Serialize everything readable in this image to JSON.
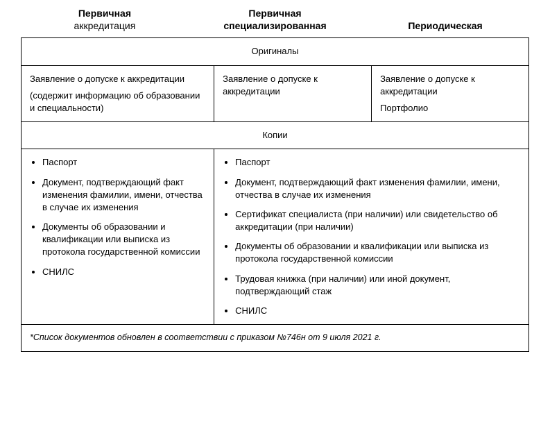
{
  "headers": {
    "col1": {
      "line1": "Первичная",
      "line2": "аккредитация"
    },
    "col2": {
      "line1": "Первичная",
      "line2": "специализированная"
    },
    "col3": {
      "line1": "Периодическая"
    }
  },
  "sections": {
    "originals_title": "Оригиналы",
    "copies_title": "Копии"
  },
  "originals": {
    "col1_line1": "Заявление о допуске к аккредитации",
    "col1_line2": "(содержит информацию об образовании и специальности)",
    "col2_line1": "Заявление о допуске к аккредитации",
    "col3_line1": "Заявление о допуске к аккредитации",
    "col3_line2": "Портфолио"
  },
  "copies_left": {
    "i0": "Паспорт",
    "i1": "Документ, подтверждающий факт изменения фамилии, имени, отчества в случае их изменения",
    "i2": "Документы об образовании и квалификации или выписка из протокола государственной комиссии",
    "i3": "СНИЛС"
  },
  "copies_right": {
    "i0": "Паспорт",
    "i1": "Документ, подтверждающий факт изменения фамилии, имени, отчества в случае их изменения",
    "i2": "Сертификат специалиста (при наличии) или свидетельство об аккредитации (при наличии)",
    "i3": "Документы об образовании и квалификации или выписка из протокола государственной комиссии",
    "i4": "Трудовая книжка (при наличии) или иной документ, подтверждающий стаж",
    "i5": "СНИЛС"
  },
  "footnote": "*Список документов обновлен в соответствии с приказом №746н от 9 июля 2021 г.",
  "styling": {
    "type": "table",
    "border_color": "#000000",
    "background_color": "#ffffff",
    "text_color": "#000000",
    "header_fontsize": 14,
    "body_fontsize": 13,
    "footnote_fontsize": 12.5,
    "header_weight_bold": 700,
    "header_weight_normal": 400,
    "font_family": "Arial",
    "columns": 3,
    "col_widths_pct": [
      38,
      31,
      31
    ],
    "line_height": 1.4
  }
}
